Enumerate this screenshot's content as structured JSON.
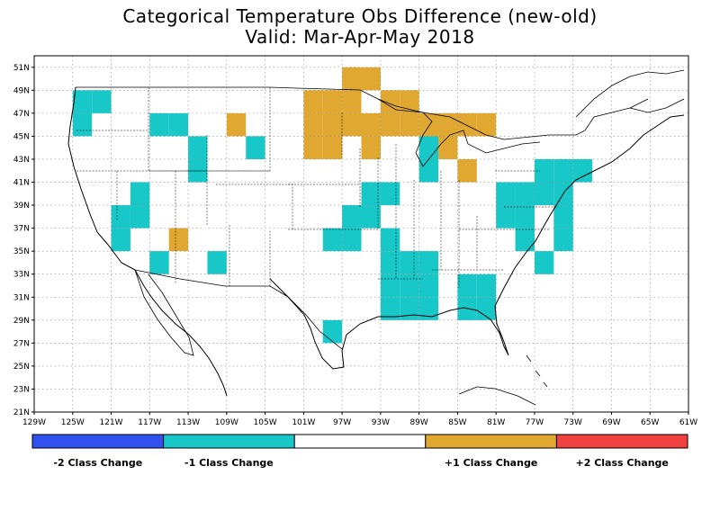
{
  "title": "Categorical Temperature Obs Difference (new-old)",
  "subtitle": "Valid: Mar-Apr-May 2018",
  "map": {
    "lon_range": [
      -129,
      -61
    ],
    "lat_range": [
      21,
      52
    ],
    "lat_ticks": [
      "21N",
      "23N",
      "25N",
      "27N",
      "29N",
      "31N",
      "33N",
      "35N",
      "37N",
      "39N",
      "41N",
      "43N",
      "45N",
      "47N",
      "49N",
      "51N"
    ],
    "lon_ticks": [
      "129W",
      "125W",
      "121W",
      "117W",
      "113W",
      "109W",
      "105W",
      "101W",
      "97W",
      "93W",
      "89W",
      "85W",
      "81W",
      "77W",
      "73W",
      "69W",
      "65W",
      "61W"
    ],
    "grid": "dotted"
  },
  "colors": {
    "minus2": "#3050f0",
    "minus1": "#18c8c8",
    "zero": "#ffffff",
    "plus1": "#e0a830",
    "plus2": "#f04040"
  },
  "cells": {
    "minus1": [
      [
        -125,
        47
      ],
      [
        -123,
        47
      ],
      [
        -125,
        45
      ],
      [
        -117,
        45
      ],
      [
        -115,
        45
      ],
      [
        -113,
        43
      ],
      [
        -113,
        41
      ],
      [
        -107,
        43
      ],
      [
        -119,
        39
      ],
      [
        -121,
        37
      ],
      [
        -119,
        37
      ],
      [
        -121,
        35
      ],
      [
        -117,
        33
      ],
      [
        -111,
        33
      ],
      [
        -99,
        35
      ],
      [
        -97,
        35
      ],
      [
        -97,
        37
      ],
      [
        -95,
        37
      ],
      [
        -95,
        39
      ],
      [
        -93,
        39
      ],
      [
        -93,
        35
      ],
      [
        -93,
        33
      ],
      [
        -93,
        31
      ],
      [
        -93,
        29
      ],
      [
        -91,
        31
      ],
      [
        -91,
        29
      ],
      [
        -89,
        31
      ],
      [
        -89,
        29
      ],
      [
        -91,
        33
      ],
      [
        -89,
        33
      ],
      [
        -85,
        29
      ],
      [
        -83,
        29
      ],
      [
        -85,
        31
      ],
      [
        -83,
        31
      ],
      [
        -99,
        27
      ],
      [
        -89,
        43
      ],
      [
        -89,
        41
      ],
      [
        -81,
        39
      ],
      [
        -79,
        39
      ],
      [
        -81,
        37
      ],
      [
        -79,
        37
      ],
      [
        -79,
        35
      ],
      [
        -77,
        33
      ],
      [
        -77,
        41
      ],
      [
        -75,
        41
      ],
      [
        -73,
        41
      ],
      [
        -77,
        39
      ],
      [
        -75,
        39
      ],
      [
        -75,
        37
      ],
      [
        -75,
        35
      ]
    ],
    "plus1": [
      [
        -101,
        47
      ],
      [
        -99,
        47
      ],
      [
        -97,
        47
      ],
      [
        -101,
        45
      ],
      [
        -99,
        45
      ],
      [
        -97,
        45
      ],
      [
        -101,
        43
      ],
      [
        -99,
        43
      ],
      [
        -97,
        49
      ],
      [
        -95,
        49
      ],
      [
        -95,
        45
      ],
      [
        -95,
        43
      ],
      [
        -93,
        47
      ],
      [
        -91,
        47
      ],
      [
        -93,
        45
      ],
      [
        -91,
        45
      ],
      [
        -89,
        45
      ],
      [
        -87,
        45
      ],
      [
        -87,
        43
      ],
      [
        -85,
        41
      ],
      [
        -85,
        45
      ],
      [
        -83,
        45
      ],
      [
        -109,
        45
      ],
      [
        -115,
        35
      ]
    ],
    "minus2": [],
    "plus2": []
  },
  "legend": {
    "labels": [
      "-2 Class Change",
      "-1 Class Change",
      "+1 Class Change",
      "+2 Class Change"
    ]
  }
}
